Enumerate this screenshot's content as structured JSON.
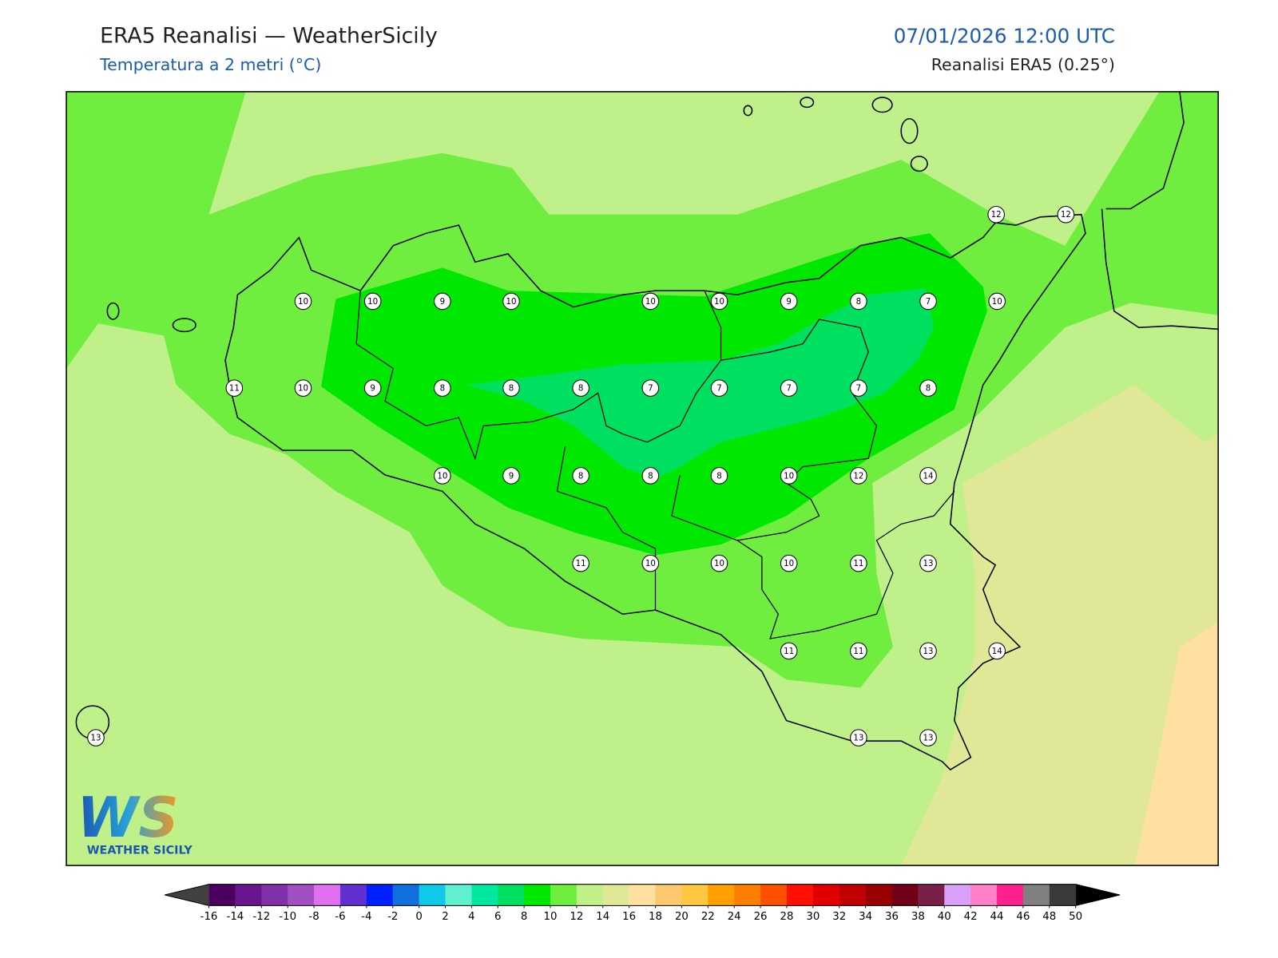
{
  "header": {
    "title": "ERA5 Reanalisi — WeatherSicily",
    "subtitle": "Temperatura a 2 metri (°C)",
    "datetime": "07/01/2026 12:00 UTC",
    "source": "Reanalisi ERA5 (0.25°)"
  },
  "map": {
    "stations": [
      10,
      10,
      9,
      10,
      10,
      10,
      9,
      8,
      7,
      10,
      12,
      12,
      11,
      10,
      9,
      8,
      8,
      8,
      7,
      7,
      7,
      7,
      8,
      10,
      9,
      8,
      8,
      8,
      10,
      12,
      14,
      11,
      10,
      10,
      10,
      11,
      13,
      11,
      11,
      13,
      14,
      13,
      13,
      13
    ]
  },
  "logo": {
    "initials": "WS",
    "name": "WEATHER SICILY"
  },
  "colorbar": {
    "ticks": [
      -16,
      -14,
      -12,
      -10,
      -8,
      -6,
      -4,
      -2,
      0,
      2,
      4,
      6,
      8,
      10,
      12,
      14,
      16,
      18,
      20,
      22,
      24,
      26,
      28,
      30,
      32,
      34,
      36,
      38,
      40,
      42,
      44,
      46,
      48,
      50
    ],
    "colors": [
      "#4b0060",
      "#6a1590",
      "#8030a8",
      "#a050c0",
      "#e070f0",
      "#6030d0",
      "#0020ff",
      "#1070e0",
      "#10c8e8",
      "#60f0d0",
      "#00e8a0",
      "#00e060",
      "#00e800",
      "#70ee40",
      "#c0f08a",
      "#e0e898",
      "#ffe0a0",
      "#fcc870",
      "#ffc840",
      "#ffa000",
      "#ff8000",
      "#ff5000",
      "#ff1000",
      "#e00000",
      "#c00000",
      "#980000",
      "#700018",
      "#782048",
      "#d8a0f8",
      "#ff80c8",
      "#ff2090",
      "#808080",
      "#3a3a3a"
    ],
    "under_color": "#404040",
    "over_color": "#000000"
  }
}
